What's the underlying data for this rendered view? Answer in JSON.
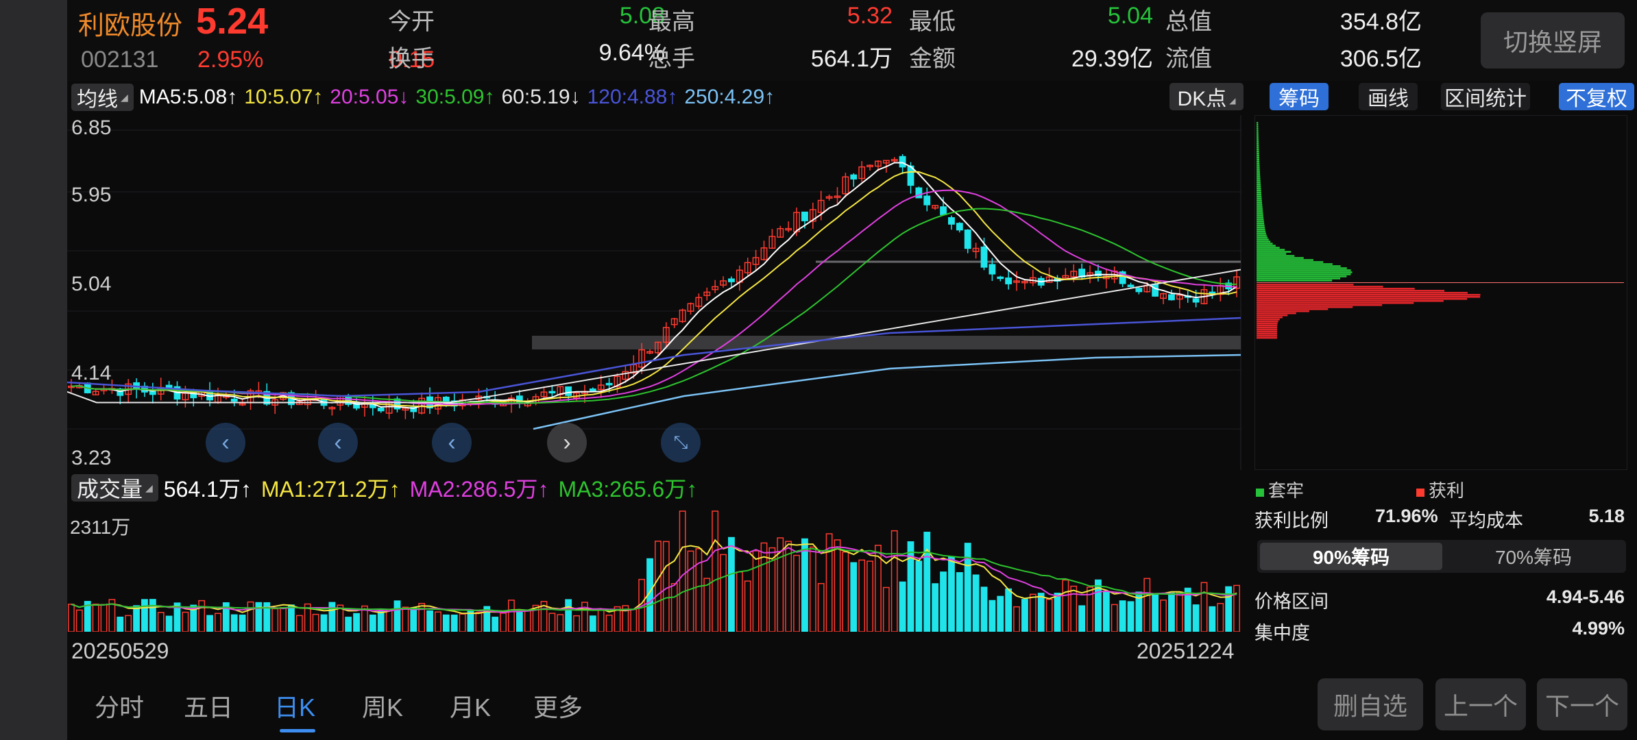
{
  "quote": {
    "name": "利欧股份",
    "price": "5.24",
    "code": "002131",
    "pct": "2.95%",
    "chg": "0.15",
    "fields": [
      {
        "k": "今开",
        "v": "5.08",
        "color": "#25c23a"
      },
      {
        "k": "最高",
        "v": "5.32",
        "color": "#ff3b30"
      },
      {
        "k": "最低",
        "v": "5.04",
        "color": "#25c23a"
      },
      {
        "k": "总值",
        "v": "354.8亿",
        "color": "#f0f0f0"
      },
      {
        "k": "换手",
        "v": "9.64%",
        "color": "#f0f0f0"
      },
      {
        "k": "总手",
        "v": "564.1万",
        "color": "#f0f0f0"
      },
      {
        "k": "金额",
        "v": "29.39亿",
        "color": "#f0f0f0"
      },
      {
        "k": "流值",
        "v": "306.5亿",
        "color": "#f0f0f0"
      }
    ],
    "switch_label": "切换竖屏"
  },
  "ma": {
    "dropdown": "均线",
    "items": [
      {
        "text": "MA5:5.08↑",
        "color": "#ffffff"
      },
      {
        "text": "10:5.07↑",
        "color": "#f5e642"
      },
      {
        "text": "20:5.05↓",
        "color": "#e040e0"
      },
      {
        "text": "30:5.09↑",
        "color": "#2ec42e"
      },
      {
        "text": "60:5.19↓",
        "color": "#e8e8e8"
      },
      {
        "text": "120:4.88↑",
        "color": "#4a55d8"
      },
      {
        "text": "250:4.29↑",
        "color": "#7cc3f5"
      }
    ],
    "dk": "DK点"
  },
  "right_tabs": [
    {
      "label": "筹码",
      "on": true
    },
    {
      "label": "画线",
      "on": false
    },
    {
      "label": "区间统计",
      "on": false
    },
    {
      "label": "不复权",
      "on": true
    }
  ],
  "yaxis": [
    "6.85",
    "5.95",
    "5.04",
    "4.14",
    "3.23"
  ],
  "volume": {
    "dropdown": "成交量",
    "items": [
      {
        "text": "564.1万↑",
        "color": "#ffffff"
      },
      {
        "text": "MA1:271.2万↑",
        "color": "#f5e642"
      },
      {
        "text": "MA2:286.5万↑",
        "color": "#e040e0"
      },
      {
        "text": "MA3:265.6万↑",
        "color": "#2ec42e"
      }
    ],
    "max": "2311万"
  },
  "dates": {
    "start": "20250529",
    "end": "20251224"
  },
  "chip": {
    "legend_trapped": "套牢",
    "legend_profit": "获利",
    "profit_ratio_label": "获利比例",
    "profit_ratio": "71.96%",
    "avg_cost_label": "平均成本",
    "avg_cost": "5.18",
    "seg_a": "90%筹码",
    "seg_b": "70%筹码",
    "range_label": "价格区间",
    "range": "4.94-5.46",
    "conc_label": "集中度",
    "conc": "4.99%"
  },
  "period_tabs": [
    "分时",
    "五日",
    "日K",
    "周K",
    "月K",
    "更多"
  ],
  "active_period": "日K",
  "buttons": {
    "remove": "删自选",
    "prev": "上一个",
    "next": "下一个"
  },
  "colors": {
    "up": "#ff3b30",
    "down": "#1fe5ea",
    "green": "#25c23a",
    "accent": "#2e6fd8"
  }
}
